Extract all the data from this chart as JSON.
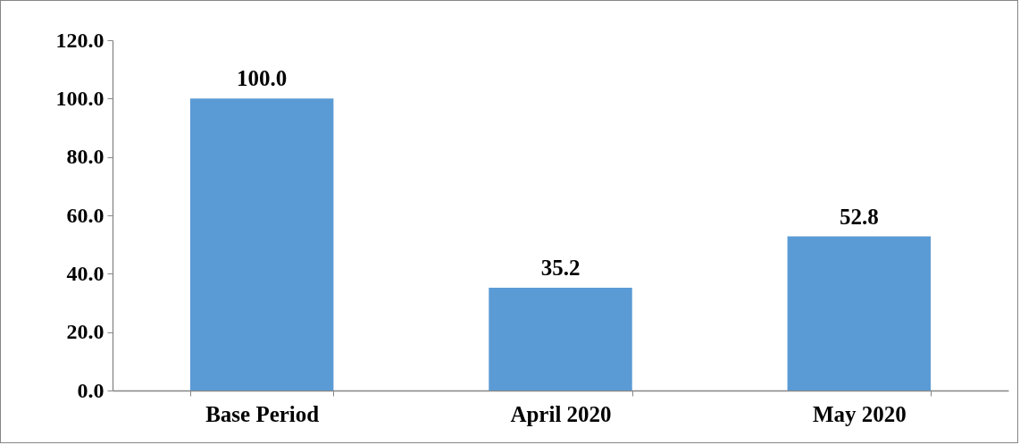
{
  "chart_data": {
    "type": "bar",
    "categories": [
      "Base Period",
      "April 2020",
      "May 2020"
    ],
    "values": [
      100,
      35.2,
      52.8
    ],
    "value_labels": [
      "100.0",
      "35.2",
      "52.8"
    ],
    "color": "#5b9bd5",
    "ylim": [
      0,
      120
    ],
    "yticks": [
      {
        "value": 0,
        "label": "0.0"
      },
      {
        "value": 20,
        "label": "20.0"
      },
      {
        "value": 40,
        "label": "40.0"
      },
      {
        "value": 60,
        "label": "60.0"
      },
      {
        "value": 80,
        "label": "80.0"
      },
      {
        "value": 100,
        "label": "100.0"
      },
      {
        "value": 120,
        "label": "120.0"
      }
    ],
    "grid": false
  }
}
